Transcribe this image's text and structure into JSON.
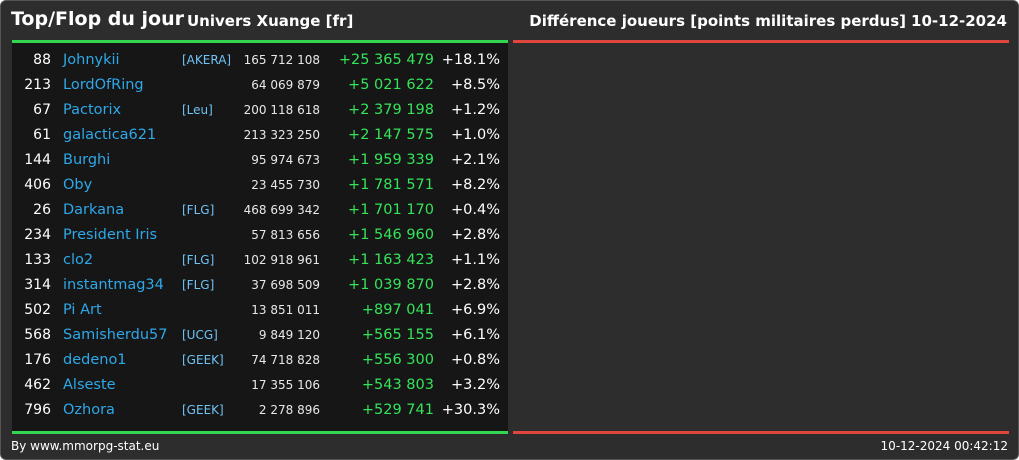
{
  "header": {
    "title": "Top/Flop du jour",
    "universe": "Univers Xuange [fr]",
    "metric": "Différence joueurs [points militaires perdus]",
    "date": "10-12-2024"
  },
  "colors": {
    "accent_green": "#33d651",
    "accent_red": "#e0463e",
    "name_blue": "#2ea8e8",
    "diff_green": "#35e35a"
  },
  "rows": [
    {
      "rank": "88",
      "name": "Johnykii",
      "alliance": "[AKERA]",
      "points": "165 712 108",
      "diff": "+25 365 479",
      "pct": "+18.1%"
    },
    {
      "rank": "213",
      "name": "LordOfRing",
      "alliance": "",
      "points": "64 069 879",
      "diff": "+5 021 622",
      "pct": "+8.5%"
    },
    {
      "rank": "67",
      "name": "Pactorix",
      "alliance": "[Leu]",
      "points": "200 118 618",
      "diff": "+2 379 198",
      "pct": "+1.2%"
    },
    {
      "rank": "61",
      "name": "galactica621",
      "alliance": "",
      "points": "213 323 250",
      "diff": "+2 147 575",
      "pct": "+1.0%"
    },
    {
      "rank": "144",
      "name": "Burghi",
      "alliance": "",
      "points": "95 974 673",
      "diff": "+1 959 339",
      "pct": "+2.1%"
    },
    {
      "rank": "406",
      "name": "Oby",
      "alliance": "",
      "points": "23 455 730",
      "diff": "+1 781 571",
      "pct": "+8.2%"
    },
    {
      "rank": "26",
      "name": "Darkana",
      "alliance": "[FLG]",
      "points": "468 699 342",
      "diff": "+1 701 170",
      "pct": "+0.4%"
    },
    {
      "rank": "234",
      "name": "President Iris",
      "alliance": "",
      "points": "57 813 656",
      "diff": "+1 546 960",
      "pct": "+2.8%"
    },
    {
      "rank": "133",
      "name": "clo2",
      "alliance": "[FLG]",
      "points": "102 918 961",
      "diff": "+1 163 423",
      "pct": "+1.1%"
    },
    {
      "rank": "314",
      "name": "instantmag34",
      "alliance": "[FLG]",
      "points": "37 698 509",
      "diff": "+1 039 870",
      "pct": "+2.8%"
    },
    {
      "rank": "502",
      "name": "Pi Art",
      "alliance": "",
      "points": "13 851 011",
      "diff": "+897 041",
      "pct": "+6.9%"
    },
    {
      "rank": "568",
      "name": "Samisherdu57",
      "alliance": "[UCG]",
      "points": "9 849 120",
      "diff": "+565 155",
      "pct": "+6.1%"
    },
    {
      "rank": "176",
      "name": "dedeno1",
      "alliance": "[GEEK]",
      "points": "74 718 828",
      "diff": "+556 300",
      "pct": "+0.8%"
    },
    {
      "rank": "462",
      "name": "Alseste",
      "alliance": "",
      "points": "17 355 106",
      "diff": "+543 803",
      "pct": "+3.2%"
    },
    {
      "rank": "796",
      "name": "Ozhora",
      "alliance": "[GEEK]",
      "points": "2 278 896",
      "diff": "+529 741",
      "pct": "+30.3%"
    }
  ],
  "footer": {
    "source": "By www.mmorpg-stat.eu",
    "timestamp": "10-12-2024 00:42:12"
  }
}
